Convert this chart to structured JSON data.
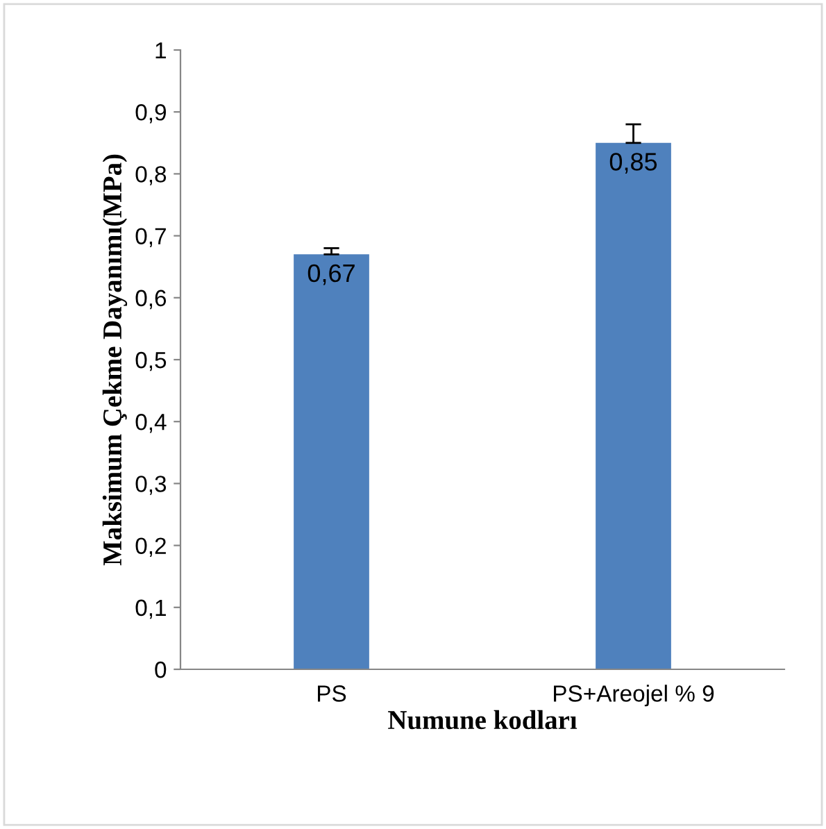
{
  "chart_data": {
    "type": "bar",
    "xlabel": "Numune kodları",
    "ylabel": "Maksimum Çekme Dayanımı(MPa)",
    "categories": [
      "PS",
      "PS+Areojel % 9"
    ],
    "values": [
      0.67,
      0.85
    ],
    "errors": [
      [
        0.67,
        0.68
      ],
      [
        0.85,
        0.88
      ]
    ],
    "value_labels": [
      "0,67",
      "0,85"
    ],
    "color": "#4f81bd",
    "ylim": [
      0,
      1
    ],
    "yticks": [
      0,
      {
        "value": 0.1,
        "label": "0,1"
      },
      {
        "value": 0.2,
        "label": "0,2"
      },
      {
        "value": 0.3,
        "label": "0,3"
      },
      {
        "value": 0.4,
        "label": "0,4"
      },
      {
        "value": 0.5,
        "label": "0,5"
      },
      {
        "value": 0.6,
        "label": "0,6"
      },
      {
        "value": 0.7,
        "label": "0,7"
      },
      {
        "value": 0.8,
        "label": "0,8"
      },
      {
        "value": 0.9,
        "label": "0,9"
      },
      1
    ],
    "grid": false,
    "legend": false
  }
}
